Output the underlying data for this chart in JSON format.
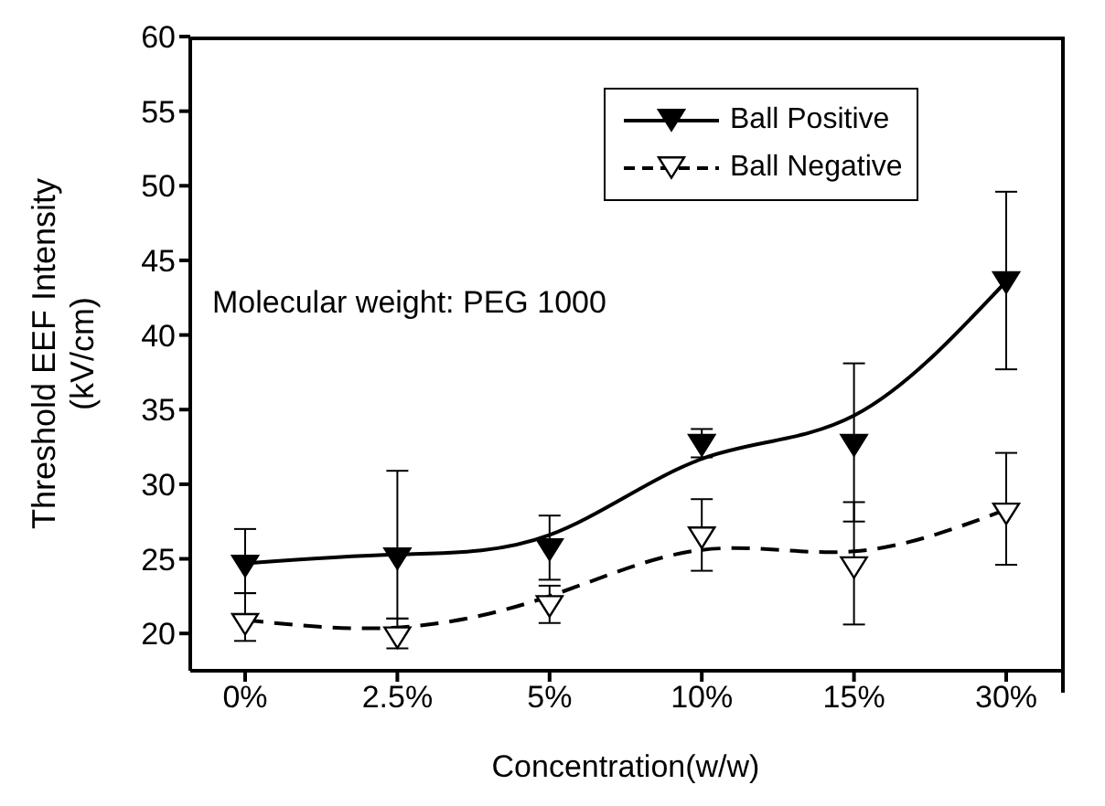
{
  "chart_data": {
    "type": "line",
    "xlabel": "Concentration(w/w)",
    "ylabel": "Threshold EEF Intensity\n(kV/cm)",
    "categories": [
      "0%",
      "2.5%",
      "5%",
      "10%",
      "15%",
      "30%"
    ],
    "series": [
      {
        "color": "#000000",
        "line_style": "solid",
        "marker": "none",
        "values": [
          24.7,
          25.3,
          26.6,
          31.7,
          34.6,
          43.6
        ]
      },
      {
        "color": "#000000",
        "line_style": "dashed",
        "marker": "none",
        "values": [
          20.9,
          20.4,
          22.5,
          25.6,
          25.5,
          28.3
        ]
      },
      {
        "type": "scatter",
        "name": "Ball Positive",
        "color": "#000000",
        "line_style": "solid",
        "marker": "triangle",
        "values": [
          24.6,
          25.1,
          25.7,
          32.7,
          32.7,
          43.6
        ],
        "errors": [
          [
            22.7,
            27.0
          ],
          [
            21.0,
            30.9
          ],
          [
            23.6,
            27.9
          ],
          [
            31.8,
            33.7
          ],
          [
            27.5,
            38.1
          ],
          [
            37.7,
            49.6
          ]
        ]
      },
      {
        "type": "scatter",
        "name": "Ball Negative",
        "color": "#000000",
        "line_style": "dashed",
        "marker": "triangle",
        "values": [
          20.7,
          19.8,
          21.9,
          26.5,
          24.5,
          28.1
        ],
        "errors": [
          [
            19.5,
            22.7
          ],
          [
            19.0,
            21.0
          ],
          [
            20.7,
            23.2
          ],
          [
            24.2,
            29.0
          ],
          [
            20.6,
            28.8
          ],
          [
            24.6,
            32.1
          ]
        ]
      }
    ],
    "ylim": [
      17.5,
      60
    ],
    "yticks": [
      20,
      25,
      30,
      35,
      40,
      45,
      50,
      55,
      60
    ],
    "grid": false,
    "legend": "top right",
    "annotations": [
      "Molecular weight: PEG 1000"
    ]
  }
}
